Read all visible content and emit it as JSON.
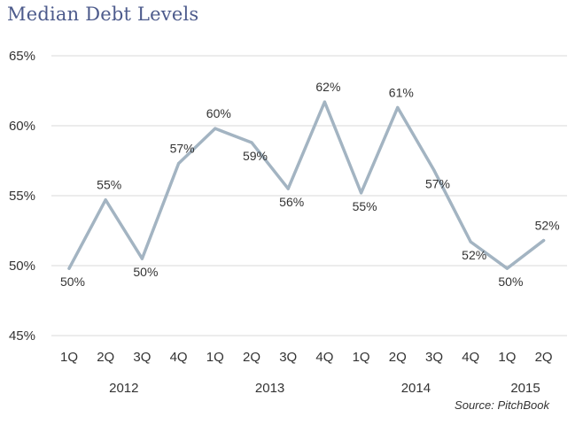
{
  "title": "Median Debt Levels",
  "source": "Source: PitchBook",
  "chart_data": {
    "type": "line",
    "title": "Median Debt Levels",
    "categories": [
      "1Q",
      "2Q",
      "3Q",
      "4Q",
      "1Q",
      "2Q",
      "3Q",
      "4Q",
      "1Q",
      "2Q",
      "3Q",
      "4Q",
      "1Q",
      "2Q"
    ],
    "years": [
      {
        "label": "2012",
        "start": 0,
        "end": 3
      },
      {
        "label": "2013",
        "start": 4,
        "end": 7
      },
      {
        "label": "2014",
        "start": 8,
        "end": 11
      },
      {
        "label": "2015",
        "start": 12,
        "end": 13
      }
    ],
    "series": [
      {
        "values": [
          49.8,
          54.7,
          50.5,
          57.3,
          59.8,
          58.8,
          55.5,
          61.7,
          55.2,
          61.3,
          56.8,
          51.7,
          49.8,
          51.8
        ],
        "labels": [
          "50%",
          "55%",
          "50%",
          "57%",
          "60%",
          "59%",
          "56%",
          "62%",
          "55%",
          "61%",
          "57%",
          "52%",
          "50%",
          "52%"
        ],
        "color": "#a3b4c2"
      }
    ],
    "ylim": [
      45,
      65
    ],
    "yticks": [
      45,
      50,
      55,
      60,
      65
    ],
    "ytick_labels": [
      "45%",
      "50%",
      "55%",
      "60%",
      "65%"
    ],
    "grid": true,
    "xlabel": "",
    "ylabel": ""
  }
}
